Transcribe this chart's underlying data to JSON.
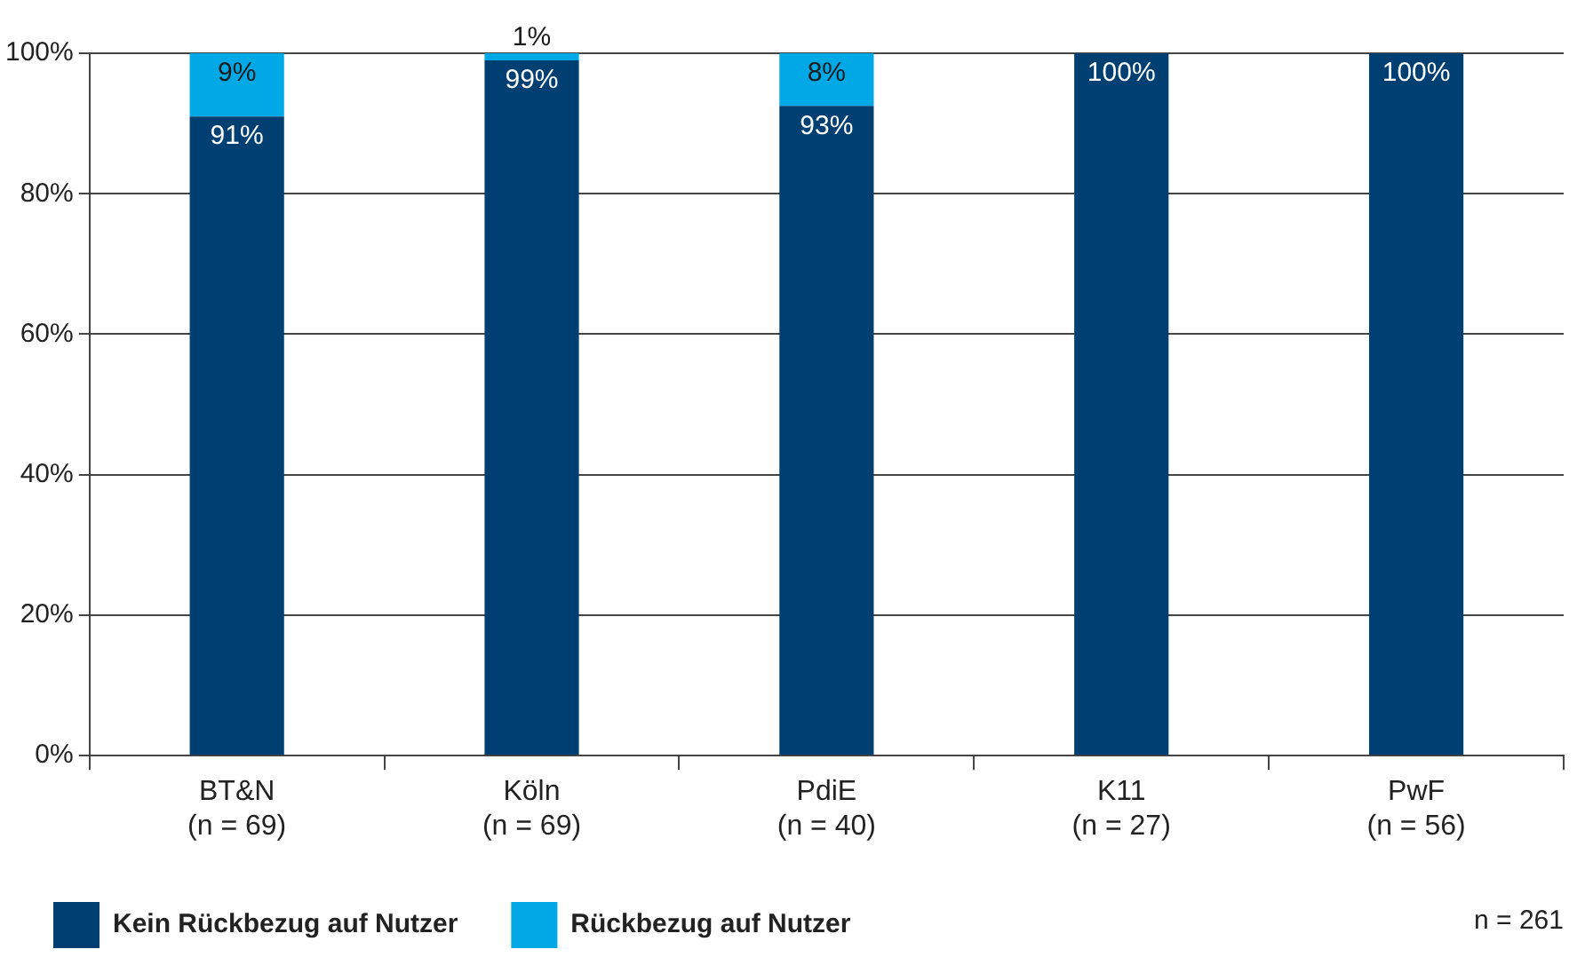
{
  "chart_data": {
    "type": "bar",
    "stacked": true,
    "categories": [
      "BT&N\n(n = 69)",
      "Köln\n(n = 69)",
      "PdiE\n(n = 40)",
      "K11\n(n = 27)",
      "PwF\n(n = 56)"
    ],
    "series": [
      {
        "name": "Kein Rückbezug auf Nutzer",
        "color": "#003f72",
        "values": [
          91,
          99,
          92.5,
          100,
          100
        ],
        "value_labels": [
          "91%",
          "99%",
          "93%",
          "100%",
          "100%"
        ]
      },
      {
        "name": "Rückbezug auf Nutzer",
        "color": "#00a8e6",
        "values": [
          9,
          1,
          7.5,
          0,
          0
        ],
        "value_labels": [
          "9%",
          "1%",
          "8%",
          null,
          null
        ]
      }
    ],
    "ylim": [
      0,
      100
    ],
    "yticks": [
      {
        "value": 0,
        "label": "0%"
      },
      {
        "value": 20,
        "label": "20%"
      },
      {
        "value": 40,
        "label": "40%"
      },
      {
        "value": 60,
        "label": "60%"
      },
      {
        "value": 80,
        "label": "80%"
      },
      {
        "value": 100,
        "label": "100%"
      }
    ],
    "grid": "y",
    "legend": "bottom left",
    "annotations": [
      "n = 261"
    ]
  }
}
